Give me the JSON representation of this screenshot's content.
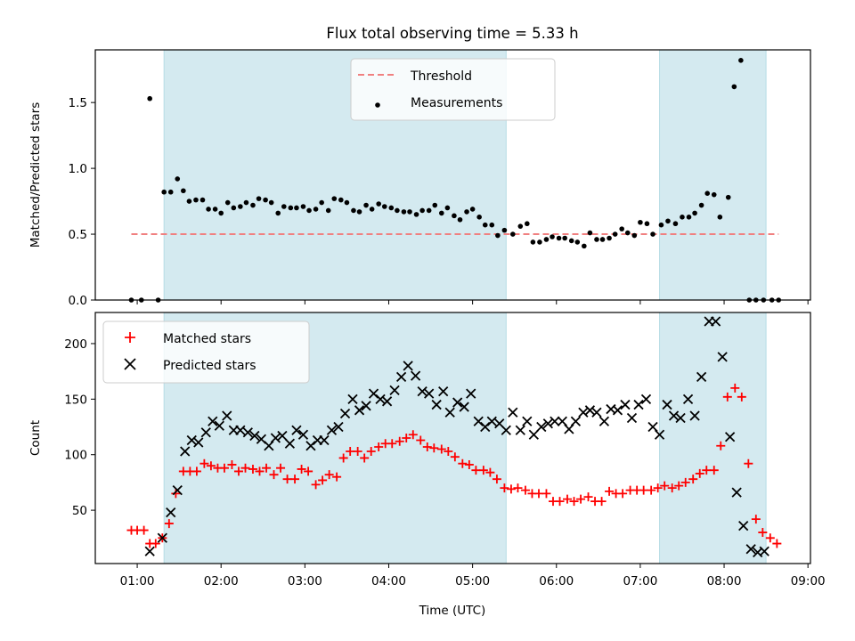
{
  "chart_data": {
    "type": "scatter",
    "title": "Flux total observing time = 5.33 h",
    "xlabel": "Time (UTC)",
    "xlim": [
      0.5,
      9.03
    ],
    "xticks": [
      "01:00",
      "02:00",
      "03:00",
      "04:00",
      "05:00",
      "06:00",
      "07:00",
      "08:00",
      "09:00"
    ],
    "shaded_intervals": [
      [
        1.32,
        5.4
      ],
      [
        7.23,
        8.5
      ]
    ],
    "shade_color": "#d4eaf0",
    "panels": [
      {
        "ylabel": "Matched/Predicted stars",
        "ylim": [
          0,
          1.9
        ],
        "yticks": [
          "0.0",
          "0.5",
          "1.0",
          "1.5"
        ],
        "threshold": {
          "name": "Threshold",
          "value": 0.5,
          "x_range": [
            0.93,
            8.65
          ],
          "color": "#f08080"
        },
        "series": [
          {
            "name": "Measurements",
            "color": "#000000",
            "marker": "dot",
            "x": [
              0.93,
              1.05,
              1.15,
              1.25,
              1.32,
              1.4,
              1.48,
              1.55,
              1.62,
              1.7,
              1.78,
              1.85,
              1.93,
              2.0,
              2.08,
              2.15,
              2.23,
              2.3,
              2.38,
              2.45,
              2.53,
              2.6,
              2.68,
              2.75,
              2.83,
              2.9,
              2.98,
              3.05,
              3.13,
              3.2,
              3.28,
              3.35,
              3.43,
              3.5,
              3.58,
              3.65,
              3.73,
              3.8,
              3.88,
              3.95,
              4.03,
              4.1,
              4.18,
              4.25,
              4.33,
              4.4,
              4.48,
              4.55,
              4.63,
              4.7,
              4.78,
              4.85,
              4.93,
              5.0,
              5.08,
              5.15,
              5.23,
              5.3,
              5.38,
              5.48,
              5.57,
              5.65,
              5.72,
              5.8,
              5.88,
              5.95,
              6.03,
              6.1,
              6.18,
              6.25,
              6.33,
              6.4,
              6.48,
              6.55,
              6.63,
              6.7,
              6.78,
              6.85,
              6.93,
              7.0,
              7.08,
              7.15,
              7.25,
              7.33,
              7.42,
              7.5,
              7.58,
              7.65,
              7.73,
              7.8,
              7.88,
              7.95,
              8.05,
              8.12,
              8.2,
              8.3,
              8.38,
              8.47,
              8.57,
              8.65
            ],
            "y": [
              0.0,
              0.0,
              1.53,
              0.0,
              0.82,
              0.82,
              0.92,
              0.83,
              0.75,
              0.76,
              0.76,
              0.69,
              0.69,
              0.66,
              0.74,
              0.7,
              0.71,
              0.74,
              0.72,
              0.77,
              0.76,
              0.74,
              0.66,
              0.71,
              0.7,
              0.7,
              0.71,
              0.68,
              0.69,
              0.74,
              0.68,
              0.77,
              0.76,
              0.74,
              0.68,
              0.67,
              0.72,
              0.69,
              0.73,
              0.71,
              0.7,
              0.68,
              0.67,
              0.67,
              0.65,
              0.68,
              0.68,
              0.72,
              0.66,
              0.7,
              0.64,
              0.61,
              0.67,
              0.69,
              0.63,
              0.57,
              0.57,
              0.49,
              0.53,
              0.5,
              0.56,
              0.58,
              0.44,
              0.44,
              0.46,
              0.48,
              0.47,
              0.47,
              0.45,
              0.44,
              0.41,
              0.51,
              0.46,
              0.46,
              0.47,
              0.5,
              0.54,
              0.51,
              0.49,
              0.59,
              0.58,
              0.5,
              0.57,
              0.6,
              0.58,
              0.63,
              0.63,
              0.66,
              0.72,
              0.81,
              0.8,
              0.63,
              0.78,
              1.62,
              1.82,
              0.0,
              0.0,
              0.0,
              0.0,
              0.0
            ]
          }
        ],
        "legend": {
          "placement": "upper center"
        }
      },
      {
        "ylabel": "Count",
        "ylim": [
          2,
          228
        ],
        "yticks": [
          "50",
          "100",
          "150",
          "200"
        ],
        "series": [
          {
            "name": "Matched stars",
            "color": "#ff0000",
            "marker": "plus",
            "x": [
              0.93,
              1.0,
              1.08,
              1.15,
              1.22,
              1.3,
              1.38,
              1.46,
              1.55,
              1.63,
              1.71,
              1.8,
              1.88,
              1.96,
              2.04,
              2.13,
              2.21,
              2.29,
              2.38,
              2.46,
              2.54,
              2.63,
              2.71,
              2.79,
              2.88,
              2.96,
              3.04,
              3.13,
              3.21,
              3.29,
              3.38,
              3.46,
              3.54,
              3.63,
              3.71,
              3.79,
              3.88,
              3.96,
              4.04,
              4.13,
              4.21,
              4.29,
              4.38,
              4.46,
              4.54,
              4.63,
              4.71,
              4.79,
              4.88,
              4.96,
              5.04,
              5.13,
              5.21,
              5.29,
              5.38,
              5.46,
              5.54,
              5.63,
              5.71,
              5.79,
              5.88,
              5.96,
              6.04,
              6.13,
              6.21,
              6.29,
              6.38,
              6.46,
              6.54,
              6.63,
              6.71,
              6.79,
              6.88,
              6.96,
              7.04,
              7.13,
              7.21,
              7.29,
              7.38,
              7.46,
              7.54,
              7.63,
              7.71,
              7.79,
              7.88,
              7.96,
              8.04,
              8.13,
              8.21,
              8.29,
              8.38,
              8.46,
              8.55,
              8.63
            ],
            "y": [
              32,
              32,
              32,
              20,
              20,
              25,
              38,
              65,
              85,
              85,
              85,
              92,
              90,
              88,
              88,
              91,
              85,
              88,
              87,
              85,
              88,
              82,
              88,
              78,
              78,
              87,
              85,
              73,
              77,
              82,
              80,
              97,
              103,
              103,
              97,
              103,
              107,
              110,
              110,
              112,
              115,
              118,
              113,
              107,
              106,
              105,
              103,
              98,
              92,
              91,
              86,
              86,
              84,
              78,
              70,
              69,
              70,
              68,
              65,
              65,
              65,
              58,
              58,
              60,
              58,
              60,
              62,
              58,
              58,
              67,
              65,
              65,
              68,
              68,
              68,
              68,
              70,
              72,
              70,
              72,
              75,
              78,
              83,
              86,
              86,
              108,
              152,
              160,
              152,
              92,
              42,
              30,
              25,
              20
            ]
          },
          {
            "name": "Predicted stars",
            "color": "#000000",
            "marker": "x",
            "x": [
              1.15,
              1.3,
              1.4,
              1.48,
              1.57,
              1.65,
              1.73,
              1.82,
              1.9,
              1.98,
              2.07,
              2.15,
              2.23,
              2.32,
              2.4,
              2.48,
              2.57,
              2.65,
              2.73,
              2.82,
              2.9,
              2.98,
              3.07,
              3.15,
              3.23,
              3.32,
              3.4,
              3.48,
              3.57,
              3.65,
              3.73,
              3.82,
              3.9,
              3.98,
              4.07,
              4.15,
              4.23,
              4.32,
              4.4,
              4.48,
              4.57,
              4.65,
              4.73,
              4.82,
              4.9,
              4.98,
              5.07,
              5.15,
              5.23,
              5.32,
              5.4,
              5.48,
              5.57,
              5.65,
              5.73,
              5.82,
              5.9,
              5.98,
              6.07,
              6.15,
              6.23,
              6.32,
              6.4,
              6.48,
              6.57,
              6.65,
              6.73,
              6.82,
              6.9,
              6.98,
              7.07,
              7.15,
              7.23,
              7.32,
              7.4,
              7.48,
              7.57,
              7.65,
              7.73,
              7.82,
              7.9,
              7.98,
              8.07,
              8.15,
              8.23,
              8.32,
              8.4,
              8.48
            ],
            "y": [
              13,
              25,
              48,
              68,
              103,
              113,
              111,
              120,
              130,
              126,
              135,
              122,
              122,
              120,
              117,
              114,
              108,
              115,
              117,
              110,
              122,
              118,
              108,
              113,
              113,
              122,
              125,
              137,
              150,
              140,
              144,
              155,
              150,
              148,
              158,
              170,
              180,
              171,
              157,
              155,
              145,
              157,
              138,
              147,
              143,
              155,
              130,
              125,
              130,
              128,
              122,
              138,
              122,
              130,
              118,
              125,
              128,
              130,
              130,
              123,
              130,
              138,
              140,
              138,
              130,
              141,
              140,
              145,
              133,
              145,
              150,
              125,
              118,
              145,
              135,
              133,
              150,
              135,
              170,
              220,
              220,
              188,
              116,
              66,
              36,
              15,
              12,
              13
            ]
          }
        ],
        "legend": {
          "placement": "upper left"
        }
      }
    ]
  }
}
